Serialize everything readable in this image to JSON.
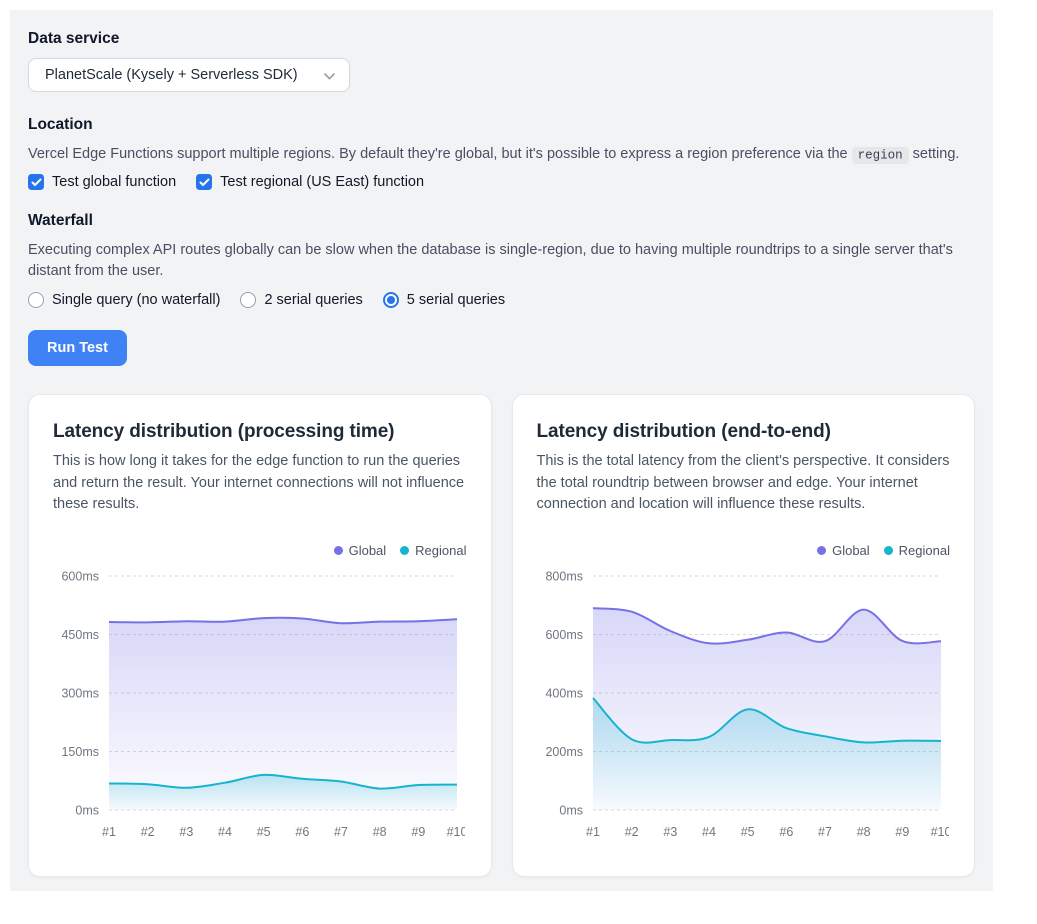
{
  "form": {
    "data_service": {
      "label": "Data service",
      "selected_option": "PlanetScale (Kysely + Serverless SDK)"
    },
    "location": {
      "label": "Location",
      "description_segments": [
        {
          "t": "Vercel Edge Functions support multiple regions. By default they're global, but it's possible to express a region preference via the "
        },
        {
          "t": "region",
          "code": true
        },
        {
          "t": " setting."
        }
      ],
      "checkboxes": [
        {
          "label": "Test global function",
          "checked": true
        },
        {
          "label": "Test regional (US East) function",
          "checked": true
        }
      ]
    },
    "waterfall": {
      "label": "Waterfall",
      "description_segments": [
        {
          "t": "Executing complex API routes globally can be slow when the database is single-region, due to having multiple roundtrips to a single server that's distant from the user."
        }
      ],
      "radios": [
        {
          "label": "Single query (no waterfall)",
          "selected": false
        },
        {
          "label": "2 serial queries",
          "selected": false
        },
        {
          "label": "5 serial queries",
          "selected": true
        }
      ]
    },
    "run_button_label": "Run Test"
  },
  "colors": {
    "accent_blue": "#3e82f6",
    "control_blue": "#2674ec",
    "global_series": "#7571e6",
    "regional_series": "#17b4cf",
    "grid": "#d8dade",
    "axis_text": "#6f7680"
  },
  "chart_data": [
    {
      "type": "area",
      "title": "Latency distribution (processing time)",
      "description_segments": [
        {
          "t": "This is how long it takes for the edge function to run the queries and return the result. Your internet connections "
        },
        {
          "t": "will not",
          "b": true
        },
        {
          "t": " influence these results."
        }
      ],
      "categories": [
        "#1",
        "#2",
        "#3",
        "#4",
        "#5",
        "#6",
        "#7",
        "#8",
        "#9",
        "#10"
      ],
      "yticks": [
        0,
        150,
        300,
        450,
        600
      ],
      "ytick_suffix": "ms",
      "ylim": [
        0,
        600
      ],
      "grid": "horizontal-dashed",
      "legend_position": "top-right",
      "series": [
        {
          "name": "Global",
          "color": "#7571e6",
          "values": [
            482,
            481,
            484,
            483,
            492,
            491,
            479,
            483,
            484,
            489
          ]
        },
        {
          "name": "Regional",
          "color": "#17b4cf",
          "values": [
            68,
            66,
            57,
            70,
            90,
            80,
            73,
            55,
            64,
            65
          ]
        }
      ]
    },
    {
      "type": "area",
      "title": "Latency distribution (end-to-end)",
      "description_segments": [
        {
          "t": "This is the total latency from the client's perspective. It considers the total roundtrip between browser and edge. Your internet connection and location "
        },
        {
          "t": "will",
          "b": true
        },
        {
          "t": " influence these results."
        }
      ],
      "categories": [
        "#1",
        "#2",
        "#3",
        "#4",
        "#5",
        "#6",
        "#7",
        "#8",
        "#9",
        "#10"
      ],
      "yticks": [
        0,
        200,
        400,
        600,
        800
      ],
      "ytick_suffix": "ms",
      "ylim": [
        0,
        800
      ],
      "grid": "horizontal-dashed",
      "legend_position": "top-right",
      "series": [
        {
          "name": "Global",
          "color": "#7571e6",
          "values": [
            690,
            678,
            612,
            570,
            582,
            607,
            577,
            685,
            578,
            577
          ]
        },
        {
          "name": "Regional",
          "color": "#17b4cf",
          "values": [
            383,
            242,
            239,
            250,
            344,
            280,
            252,
            231,
            237,
            236
          ]
        }
      ]
    }
  ]
}
